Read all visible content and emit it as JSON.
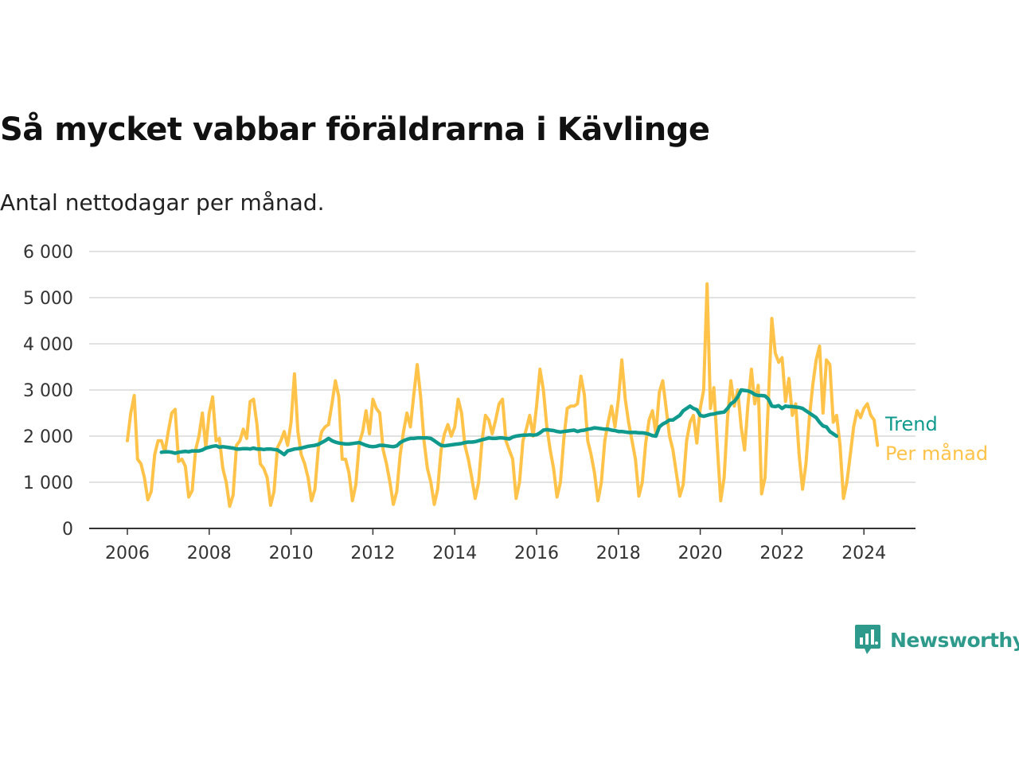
{
  "header": {
    "title": "Så mycket vabbar föräldrarna i Kävlinge",
    "subtitle": "Antal nettodagar per månad."
  },
  "brand": {
    "name": "Newsworthy"
  },
  "colors": {
    "trend": "#0f9a8d",
    "monthly": "#ffc34a",
    "grid": "#d9d9d9",
    "axis": "#333333"
  },
  "chart_data": {
    "type": "line",
    "x_type": "month",
    "start": "2006-01",
    "xlim": [
      "2006-01",
      "2024-12"
    ],
    "ylim": [
      0,
      6000
    ],
    "y_ticks": [
      0,
      1000,
      2000,
      3000,
      4000,
      5000,
      6000
    ],
    "y_tick_labels": [
      "0",
      "1 000",
      "2 000",
      "3 000",
      "4 000",
      "5 000",
      "6 000"
    ],
    "x_ticks": [
      "2006",
      "2008",
      "2010",
      "2012",
      "2014",
      "2016",
      "2018",
      "2020",
      "2022",
      "2024"
    ],
    "grid": true,
    "legend_placement": "line-end right",
    "series": [
      {
        "name": "Per månad",
        "color": "#ffc34a",
        "values": [
          1900,
          2500,
          2880,
          1500,
          1400,
          1100,
          620,
          800,
          1600,
          1900,
          1900,
          1650,
          2100,
          2500,
          2580,
          1450,
          1500,
          1350,
          680,
          820,
          1700,
          2000,
          2500,
          1750,
          2500,
          2850,
          1900,
          1950,
          1300,
          1000,
          480,
          720,
          1800,
          1900,
          2150,
          1950,
          2750,
          2800,
          2250,
          1400,
          1300,
          1100,
          500,
          800,
          1750,
          1900,
          2100,
          1800,
          2300,
          3350,
          2100,
          1600,
          1400,
          1100,
          600,
          850,
          1750,
          2100,
          2200,
          2250,
          2700,
          3200,
          2850,
          1500,
          1500,
          1200,
          600,
          950,
          1850,
          2100,
          2550,
          2050,
          2800,
          2600,
          2500,
          1700,
          1400,
          1000,
          520,
          800,
          1600,
          2100,
          2500,
          2200,
          2900,
          3550,
          2850,
          1900,
          1300,
          1000,
          520,
          850,
          1700,
          2050,
          2250,
          2000,
          2200,
          2800,
          2500,
          1800,
          1500,
          1100,
          650,
          1000,
          1900,
          2450,
          2350,
          2050,
          2350,
          2700,
          2800,
          1900,
          1700,
          1500,
          650,
          1000,
          1900,
          2150,
          2450,
          2000,
          2650,
          3450,
          3000,
          2200,
          1700,
          1300,
          680,
          1000,
          1950,
          2600,
          2650,
          2650,
          2700,
          3300,
          2900,
          1900,
          1600,
          1200,
          600,
          1000,
          1900,
          2300,
          2650,
          2200,
          2800,
          3650,
          2800,
          2300,
          1900,
          1500,
          700,
          1000,
          1850,
          2350,
          2550,
          2050,
          2950,
          3200,
          2600,
          2000,
          1700,
          1200,
          700,
          950,
          1900,
          2300,
          2450,
          1850,
          2600,
          3000,
          5300,
          2600,
          3050,
          1800,
          600,
          1100,
          2400,
          3200,
          2650,
          3000,
          2200,
          1700,
          2700,
          3450,
          2700,
          3100,
          750,
          1100,
          2800,
          4550,
          3800,
          3600,
          3700,
          2750,
          3250,
          2450,
          2700,
          1600,
          850,
          1400,
          2400,
          3100,
          3650,
          3950,
          2500,
          3650,
          3550,
          2300,
          2450,
          1800,
          650,
          1000,
          1600,
          2200,
          2550,
          2400,
          2600,
          2700,
          2450,
          2350,
          1800
        ]
      },
      {
        "name": "Trend",
        "color": "#0f9a8d",
        "start": "2006-11",
        "values": [
          1650,
          1660,
          1660,
          1650,
          1630,
          1650,
          1660,
          1670,
          1660,
          1680,
          1680,
          1680,
          1700,
          1740,
          1760,
          1780,
          1790,
          1760,
          1770,
          1760,
          1750,
          1740,
          1720,
          1720,
          1730,
          1730,
          1720,
          1740,
          1720,
          1720,
          1710,
          1720,
          1720,
          1710,
          1700,
          1650,
          1600,
          1680,
          1700,
          1720,
          1730,
          1740,
          1760,
          1780,
          1790,
          1800,
          1820,
          1860,
          1900,
          1950,
          1900,
          1870,
          1850,
          1840,
          1830,
          1830,
          1840,
          1850,
          1860,
          1830,
          1800,
          1780,
          1770,
          1780,
          1800,
          1800,
          1790,
          1780,
          1770,
          1790,
          1860,
          1900,
          1930,
          1950,
          1950,
          1960,
          1960,
          1960,
          1960,
          1950,
          1900,
          1850,
          1800,
          1790,
          1800,
          1810,
          1820,
          1830,
          1840,
          1860,
          1870,
          1870,
          1880,
          1900,
          1920,
          1940,
          1960,
          1950,
          1950,
          1960,
          1960,
          1950,
          1940,
          1980,
          2000,
          2010,
          2020,
          2020,
          2030,
          2020,
          2030,
          2070,
          2130,
          2140,
          2130,
          2120,
          2100,
          2090,
          2100,
          2110,
          2120,
          2130,
          2100,
          2120,
          2130,
          2150,
          2160,
          2180,
          2170,
          2160,
          2150,
          2150,
          2130,
          2120,
          2100,
          2100,
          2090,
          2080,
          2080,
          2080,
          2070,
          2070,
          2060,
          2040,
          2010,
          2000,
          2200,
          2260,
          2300,
          2350,
          2350,
          2400,
          2450,
          2550,
          2600,
          2650,
          2600,
          2570,
          2450,
          2430,
          2450,
          2470,
          2480,
          2500,
          2510,
          2520,
          2600,
          2700,
          2750,
          2850,
          3000,
          2990,
          2980,
          2950,
          2900,
          2880,
          2880,
          2870,
          2800,
          2650,
          2640,
          2660,
          2600,
          2650,
          2640,
          2640,
          2630,
          2620,
          2600,
          2550,
          2500,
          2450,
          2400,
          2300,
          2220,
          2200,
          2100,
          2050,
          2000
        ]
      }
    ]
  }
}
